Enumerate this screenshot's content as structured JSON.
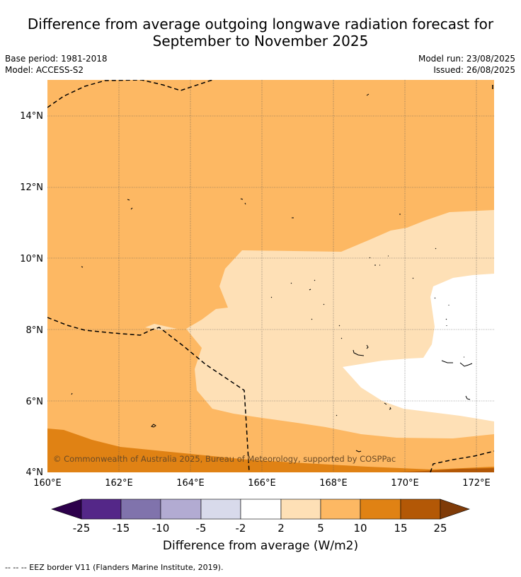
{
  "title_line1": "Difference from average outgoing longwave radiation forecast for",
  "title_line2": "September to November 2025",
  "meta": {
    "base_period": "Base period: 1981-2018",
    "model": "Model: ACCESS-S2",
    "model_run": "Model run: 23/08/2025",
    "issued": "Issued: 26/08/2025"
  },
  "map": {
    "copyright": "© Commonwealth of Australia 2025, Bureau of Meteorology, supported by COSPPac",
    "lon_ticks": [
      "160°E",
      "162°E",
      "164°E",
      "166°E",
      "168°E",
      "170°E",
      "172°E"
    ],
    "lat_ticks": [
      "4°N",
      "6°N",
      "8°N",
      "10°N",
      "12°N",
      "14°N"
    ],
    "lon_range": [
      160,
      172.5
    ],
    "lat_range": [
      4,
      15
    ]
  },
  "colorbar": {
    "ticks": [
      "-25",
      "-15",
      "-10",
      "-5",
      "-2",
      "2",
      "5",
      "10",
      "15",
      "25"
    ],
    "colors": {
      "below_min": "#2d004b",
      "bins": [
        "#542788",
        "#8073ac",
        "#b2abd2",
        "#d8daeb",
        "#ffffff",
        "#fee0b6",
        "#fdb863",
        "#e08214",
        "#b35806"
      ],
      "above_max": "#7f3b08"
    },
    "label": "Difference from average (W/m2)"
  },
  "footnote": "--  --  -- EEZ border V11 (Flanders Marine Institute, 2019)."
}
